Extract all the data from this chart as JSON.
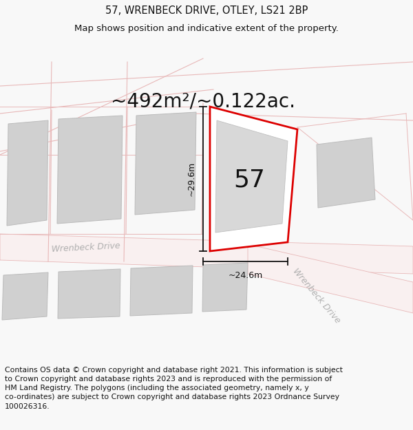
{
  "title_line1": "57, WRENBECK DRIVE, OTLEY, LS21 2BP",
  "title_line2": "Map shows position and indicative extent of the property.",
  "area_text": "~492m²/~0.122ac.",
  "number_label": "57",
  "dim_width": "~24.6m",
  "dim_height": "~29.6m",
  "road_label1": "Wrenbeck Drive",
  "road_label2": "Wrenbeck Drive",
  "footer_text": "Contains OS data © Crown copyright and database right 2021. This information is subject to Crown copyright and database rights 2023 and is reproduced with the permission of HM Land Registry. The polygons (including the associated geometry, namely x, y co-ordinates) are subject to Crown copyright and database rights 2023 Ordnance Survey 100026316.",
  "bg_color": "#f8f8f8",
  "map_bg": "#ffffff",
  "red_color": "#dd0000",
  "gray_fill": "#d0d0d0",
  "gray_edge": "#bbbbbb",
  "parcel_fill": "#ececec",
  "parcel_edge": "#e0b8b8",
  "road_edge": "#e8b8b8",
  "dim_color": "#111111",
  "road_text_color": "#aaaaaa",
  "title_fontsize": 10.5,
  "subtitle_fontsize": 9.5,
  "area_fontsize": 20,
  "number_fontsize": 26,
  "road_fontsize": 9,
  "footer_fontsize": 7.8
}
